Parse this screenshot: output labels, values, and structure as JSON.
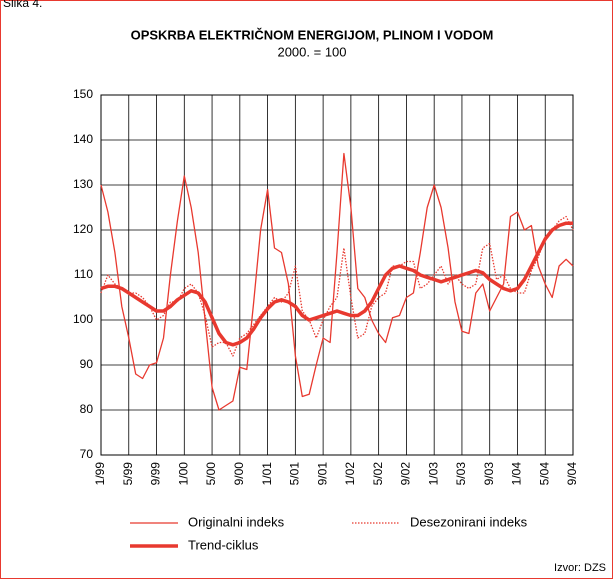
{
  "caption": "Slika 4.",
  "source": "Izvor: DZS",
  "chart_data": {
    "type": "line",
    "title": "OPSKRBA ELEKTRIČNOM ENERGIJOM, PLINOM I VODOM",
    "subtitle": "2000. = 100",
    "categories": [
      "1/99",
      null,
      null,
      null,
      "5/99",
      null,
      null,
      null,
      "9/99",
      null,
      null,
      null,
      "1/00",
      null,
      null,
      null,
      "5/00",
      null,
      null,
      null,
      "9/00",
      null,
      null,
      null,
      "1/01",
      null,
      null,
      null,
      "5/01",
      null,
      null,
      null,
      "9/01",
      null,
      null,
      null,
      "1/02",
      null,
      null,
      null,
      "5/02",
      null,
      null,
      null,
      "9/02",
      null,
      null,
      null,
      "1/03",
      null,
      null,
      null,
      "5/03",
      null,
      null,
      null,
      "9/03",
      null,
      null,
      null,
      "1/04",
      null,
      null,
      null,
      "5/04",
      null,
      null,
      null,
      "9/04"
    ],
    "series": [
      {
        "name": "Originalni indeks",
        "color": "#e8392f",
        "style": "thin",
        "values": [
          130,
          124,
          115,
          103,
          96,
          88,
          87,
          90,
          90.5,
          96,
          110,
          122,
          132,
          125,
          115,
          100,
          85,
          80,
          81,
          82,
          89.5,
          89,
          104,
          120,
          129,
          116,
          115,
          108,
          92,
          83,
          83.5,
          90,
          96,
          95,
          115,
          137,
          125,
          107,
          105,
          100,
          97,
          95,
          100.5,
          101,
          105,
          106,
          115,
          125,
          130,
          125,
          116,
          104,
          97.5,
          97,
          106,
          108,
          102,
          105,
          108,
          123,
          124,
          120,
          121,
          112,
          108,
          105,
          112,
          113.5,
          112
        ]
      },
      {
        "name": "Desezonirani indeks",
        "color": "#e8392f",
        "style": "dotted",
        "values": [
          106,
          110,
          108,
          107,
          106,
          106,
          105,
          103,
          100,
          101,
          104,
          104,
          107,
          108,
          106,
          101,
          94,
          95,
          95,
          92,
          96,
          97,
          99,
          101,
          103,
          105,
          104,
          106,
          112,
          102,
          100,
          96,
          100,
          103,
          105,
          116,
          105,
          96,
          97,
          103,
          105,
          106,
          112,
          112,
          113,
          113,
          107,
          108,
          110,
          112,
          108,
          110,
          108,
          107,
          108,
          116,
          117,
          109,
          110,
          107,
          106,
          106,
          111,
          114,
          118,
          120,
          122,
          123,
          120
        ]
      },
      {
        "name": "Trend-ciklus",
        "color": "#e8392f",
        "style": "thick",
        "values": [
          107,
          107.5,
          107.5,
          107,
          106,
          105,
          104,
          103,
          102,
          102,
          103,
          104.5,
          105.5,
          106.5,
          106,
          104,
          100.5,
          97,
          95,
          94.5,
          95,
          96,
          98,
          100.5,
          102.5,
          104,
          104.5,
          104,
          103,
          101,
          100,
          100.5,
          101,
          101.5,
          102,
          101.5,
          101,
          101,
          102,
          104,
          107,
          110,
          111.5,
          112,
          111.5,
          111,
          110,
          109.5,
          109,
          108.5,
          109,
          109.5,
          110,
          110.5,
          111,
          110.5,
          109,
          108,
          107,
          106.5,
          107,
          109,
          112,
          115,
          118,
          120,
          121,
          121.5,
          121.5
        ]
      }
    ],
    "ylim": [
      70,
      150
    ],
    "yticks": [
      70,
      80,
      90,
      100,
      110,
      120,
      130,
      140,
      150
    ],
    "grid": true
  }
}
